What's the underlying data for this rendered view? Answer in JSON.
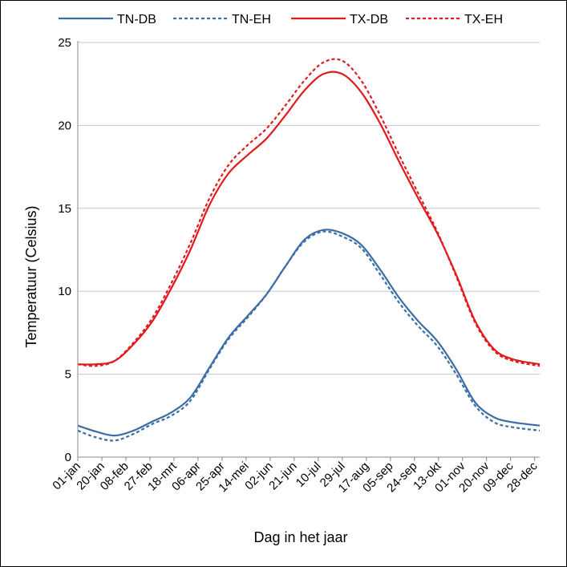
{
  "chart_data": {
    "type": "line",
    "title": "",
    "xlabel": "Dag in het jaar",
    "ylabel": "Temperatuur (Celsius)",
    "xlim": [
      1,
      366
    ],
    "ylim": [
      0,
      25
    ],
    "yticks": [
      0,
      5,
      10,
      15,
      20,
      25
    ],
    "xtick_days": [
      1,
      20,
      39,
      58,
      77,
      96,
      115,
      134,
      153,
      172,
      191,
      210,
      229,
      248,
      267,
      286,
      305,
      324,
      343,
      362
    ],
    "xtick_labels": [
      "01-jan",
      "20-jan",
      "08-feb",
      "27-feb",
      "18-mrt",
      "06-apr",
      "25-apr",
      "14-mei",
      "02-jun",
      "21-jun",
      "10-jul",
      "29-jul",
      "17-aug",
      "05-sep",
      "24-sep",
      "13-okt",
      "01-nov",
      "20-nov",
      "09-dec",
      "28-dec"
    ],
    "grid": "horizontal",
    "legend_position": "top",
    "series": [
      {
        "name": "TN-DB",
        "color": "#3a6ea5",
        "dash": "solid",
        "points": [
          [
            1,
            1.9
          ],
          [
            15,
            1.55
          ],
          [
            30,
            1.3
          ],
          [
            45,
            1.6
          ],
          [
            60,
            2.15
          ],
          [
            75,
            2.7
          ],
          [
            90,
            3.6
          ],
          [
            105,
            5.4
          ],
          [
            120,
            7.2
          ],
          [
            135,
            8.5
          ],
          [
            150,
            9.8
          ],
          [
            165,
            11.5
          ],
          [
            180,
            13.1
          ],
          [
            195,
            13.7
          ],
          [
            210,
            13.5
          ],
          [
            225,
            12.8
          ],
          [
            240,
            11.3
          ],
          [
            255,
            9.6
          ],
          [
            270,
            8.2
          ],
          [
            285,
            7.0
          ],
          [
            300,
            5.3
          ],
          [
            315,
            3.3
          ],
          [
            330,
            2.4
          ],
          [
            345,
            2.1
          ],
          [
            366,
            1.9
          ]
        ]
      },
      {
        "name": "TN-EH",
        "color": "#3a6ea5",
        "dash": "dotted",
        "points": [
          [
            1,
            1.6
          ],
          [
            15,
            1.2
          ],
          [
            30,
            1.0
          ],
          [
            45,
            1.4
          ],
          [
            60,
            2.0
          ],
          [
            75,
            2.5
          ],
          [
            90,
            3.4
          ],
          [
            105,
            5.3
          ],
          [
            120,
            7.1
          ],
          [
            135,
            8.4
          ],
          [
            150,
            9.8
          ],
          [
            165,
            11.5
          ],
          [
            180,
            13.0
          ],
          [
            195,
            13.6
          ],
          [
            210,
            13.3
          ],
          [
            225,
            12.6
          ],
          [
            240,
            11.0
          ],
          [
            255,
            9.3
          ],
          [
            270,
            7.9
          ],
          [
            285,
            6.7
          ],
          [
            300,
            5.0
          ],
          [
            315,
            3.1
          ],
          [
            330,
            2.1
          ],
          [
            345,
            1.8
          ],
          [
            366,
            1.6
          ]
        ]
      },
      {
        "name": "TX-DB",
        "color": "#e31a1c",
        "dash": "solid",
        "points": [
          [
            1,
            5.6
          ],
          [
            15,
            5.6
          ],
          [
            30,
            5.8
          ],
          [
            45,
            6.8
          ],
          [
            60,
            8.2
          ],
          [
            75,
            10.2
          ],
          [
            90,
            12.5
          ],
          [
            105,
            15.2
          ],
          [
            120,
            17.1
          ],
          [
            135,
            18.2
          ],
          [
            150,
            19.2
          ],
          [
            165,
            20.6
          ],
          [
            180,
            22.1
          ],
          [
            195,
            23.1
          ],
          [
            210,
            23.1
          ],
          [
            225,
            22.0
          ],
          [
            240,
            20.1
          ],
          [
            255,
            17.8
          ],
          [
            270,
            15.6
          ],
          [
            285,
            13.5
          ],
          [
            300,
            11.0
          ],
          [
            315,
            8.2
          ],
          [
            330,
            6.5
          ],
          [
            345,
            5.9
          ],
          [
            366,
            5.6
          ]
        ]
      },
      {
        "name": "TX-EH",
        "color": "#e31a1c",
        "dash": "dotted",
        "points": [
          [
            1,
            5.6
          ],
          [
            15,
            5.5
          ],
          [
            30,
            5.8
          ],
          [
            45,
            6.9
          ],
          [
            60,
            8.4
          ],
          [
            75,
            10.5
          ],
          [
            90,
            12.9
          ],
          [
            105,
            15.6
          ],
          [
            120,
            17.6
          ],
          [
            135,
            18.8
          ],
          [
            150,
            19.8
          ],
          [
            165,
            21.2
          ],
          [
            180,
            22.7
          ],
          [
            195,
            23.8
          ],
          [
            210,
            23.9
          ],
          [
            225,
            22.7
          ],
          [
            240,
            20.6
          ],
          [
            255,
            18.2
          ],
          [
            270,
            15.9
          ],
          [
            285,
            13.6
          ],
          [
            300,
            10.9
          ],
          [
            315,
            8.1
          ],
          [
            330,
            6.4
          ],
          [
            345,
            5.8
          ],
          [
            366,
            5.5
          ]
        ]
      }
    ]
  }
}
